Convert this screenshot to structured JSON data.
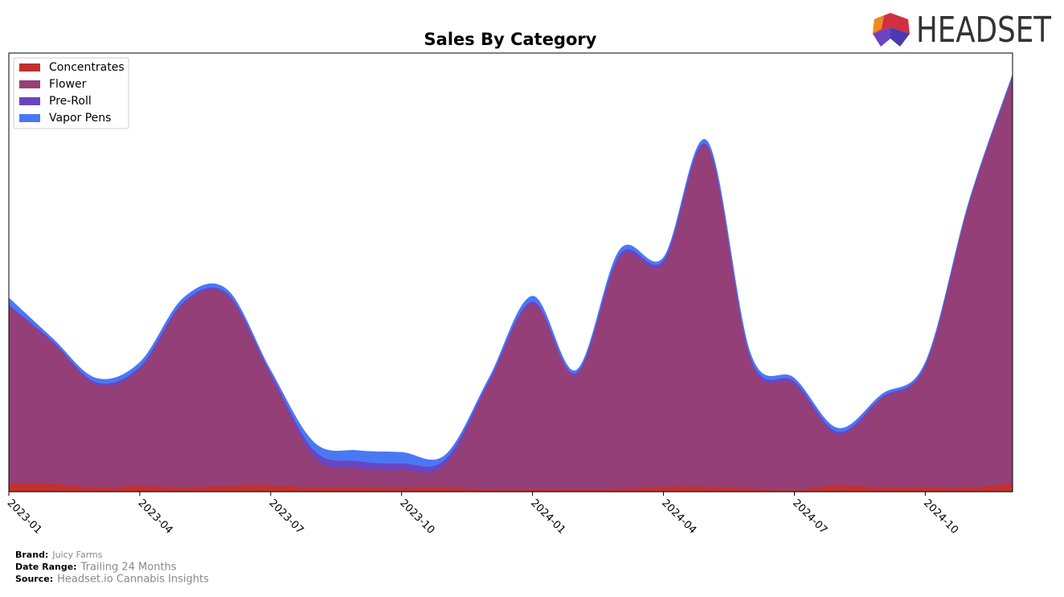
{
  "brand": {
    "logo": "HEADSET"
  },
  "chart_data": {
    "type": "stacked-area",
    "title": "Sales By Category",
    "x": [
      "2023-01",
      "2023-02",
      "2023-03",
      "2023-04",
      "2023-05",
      "2023-06",
      "2023-07",
      "2023-08",
      "2023-09",
      "2023-10",
      "2023-11",
      "2023-12",
      "2024-01",
      "2024-02",
      "2024-03",
      "2024-04",
      "2024-05",
      "2024-06",
      "2024-07",
      "2024-08",
      "2024-09",
      "2024-10",
      "2024-11",
      "2024-12"
    ],
    "xticks": [
      "2023-01",
      "2023-04",
      "2023-07",
      "2023-10",
      "2024-01",
      "2024-04",
      "2024-07",
      "2024-10"
    ],
    "ylim": [
      0,
      100
    ],
    "legend": "upper-left",
    "series": [
      {
        "name": "Concentrates",
        "color": "#c0312f",
        "values": [
          2.0,
          1.9,
          1.0,
          1.4,
          1.0,
          1.5,
          1.6,
          1.0,
          1.0,
          0.9,
          1.0,
          0.5,
          0.5,
          0.6,
          0.7,
          1.2,
          1.2,
          0.8,
          0.4,
          1.6,
          1.0,
          1.0,
          1.0,
          2.0
        ]
      },
      {
        "name": "Flower",
        "color": "#953f78",
        "values": [
          40.2,
          32.1,
          23.5,
          26.5,
          41.8,
          43.2,
          24.9,
          6.9,
          4.4,
          4.1,
          5.2,
          24.3,
          42.3,
          26.1,
          52.7,
          50.8,
          77.3,
          29.0,
          24.1,
          11.5,
          20.2,
          27.7,
          64.7,
          92.7
        ]
      },
      {
        "name": "Pre-Roll",
        "color": "#6a45c0",
        "values": [
          0.4,
          0.4,
          0.5,
          0.6,
          0.5,
          0.6,
          0.6,
          1.5,
          1.6,
          1.5,
          1.2,
          0.5,
          0.6,
          0.4,
          0.8,
          0.8,
          0.6,
          0.7,
          0.7,
          0.6,
          0.4,
          0.3,
          0.2,
          0.2
        ]
      },
      {
        "name": "Vapor Pens",
        "color": "#4a78f5",
        "values": [
          1.6,
          0.6,
          0.9,
          1.0,
          0.9,
          0.8,
          0.6,
          1.8,
          2.4,
          2.5,
          1.0,
          0.6,
          1.2,
          0.6,
          1.0,
          0.6,
          0.9,
          0.9,
          0.7,
          0.8,
          0.6,
          0.5,
          0.3,
          0.3
        ]
      }
    ]
  },
  "footer": [
    {
      "label": "Brand:",
      "value": "Juicy Farms"
    },
    {
      "label": "Date Range:",
      "value": "Trailing 24 Months"
    },
    {
      "label": "Source:",
      "value": "Headset.io Cannabis Insights"
    }
  ]
}
